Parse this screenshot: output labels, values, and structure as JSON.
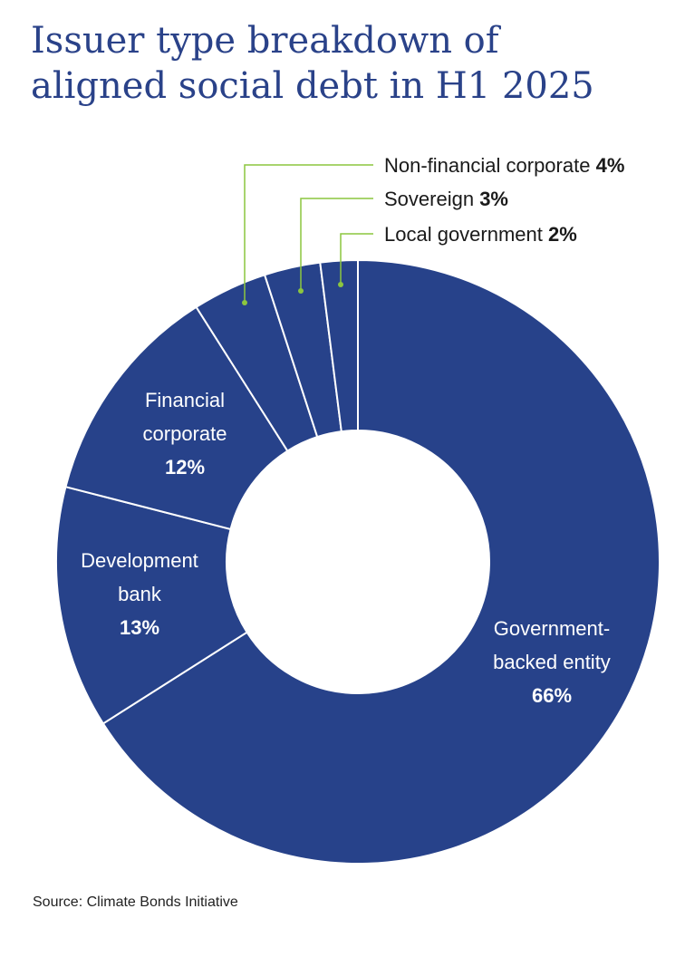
{
  "title": {
    "line1": "Issuer type breakdown of",
    "line2": "aligned social debt in H1 2025"
  },
  "source": "Source: Climate Bonds Initiative",
  "colors": {
    "slice": "#27428a",
    "separator": "#ffffff",
    "leader": "#8cc63f",
    "title": "#2a4289"
  },
  "chart_data": {
    "type": "pie",
    "variant": "donut",
    "title": "Issuer type breakdown of aligned social debt in H1 2025",
    "slices": [
      {
        "name": "Government-backed entity",
        "value": 66,
        "label_lines": [
          "Government-",
          "backed entity"
        ],
        "pct_text": "66%"
      },
      {
        "name": "Development bank",
        "value": 13,
        "label_lines": [
          "Development",
          "bank"
        ],
        "pct_text": "13%"
      },
      {
        "name": "Financial corporate",
        "value": 12,
        "label_lines": [
          "Financial",
          "corporate"
        ],
        "pct_text": "12%"
      },
      {
        "name": "Non-financial corporate",
        "value": 4,
        "label_lines": [
          "Non-financial corporate"
        ],
        "pct_text": "4%"
      },
      {
        "name": "Sovereign",
        "value": 3,
        "label_lines": [
          "Sovereign"
        ],
        "pct_text": "3%"
      },
      {
        "name": "Local government",
        "value": 2,
        "label_lines": [
          "Local government"
        ],
        "pct_text": "2%"
      }
    ]
  }
}
